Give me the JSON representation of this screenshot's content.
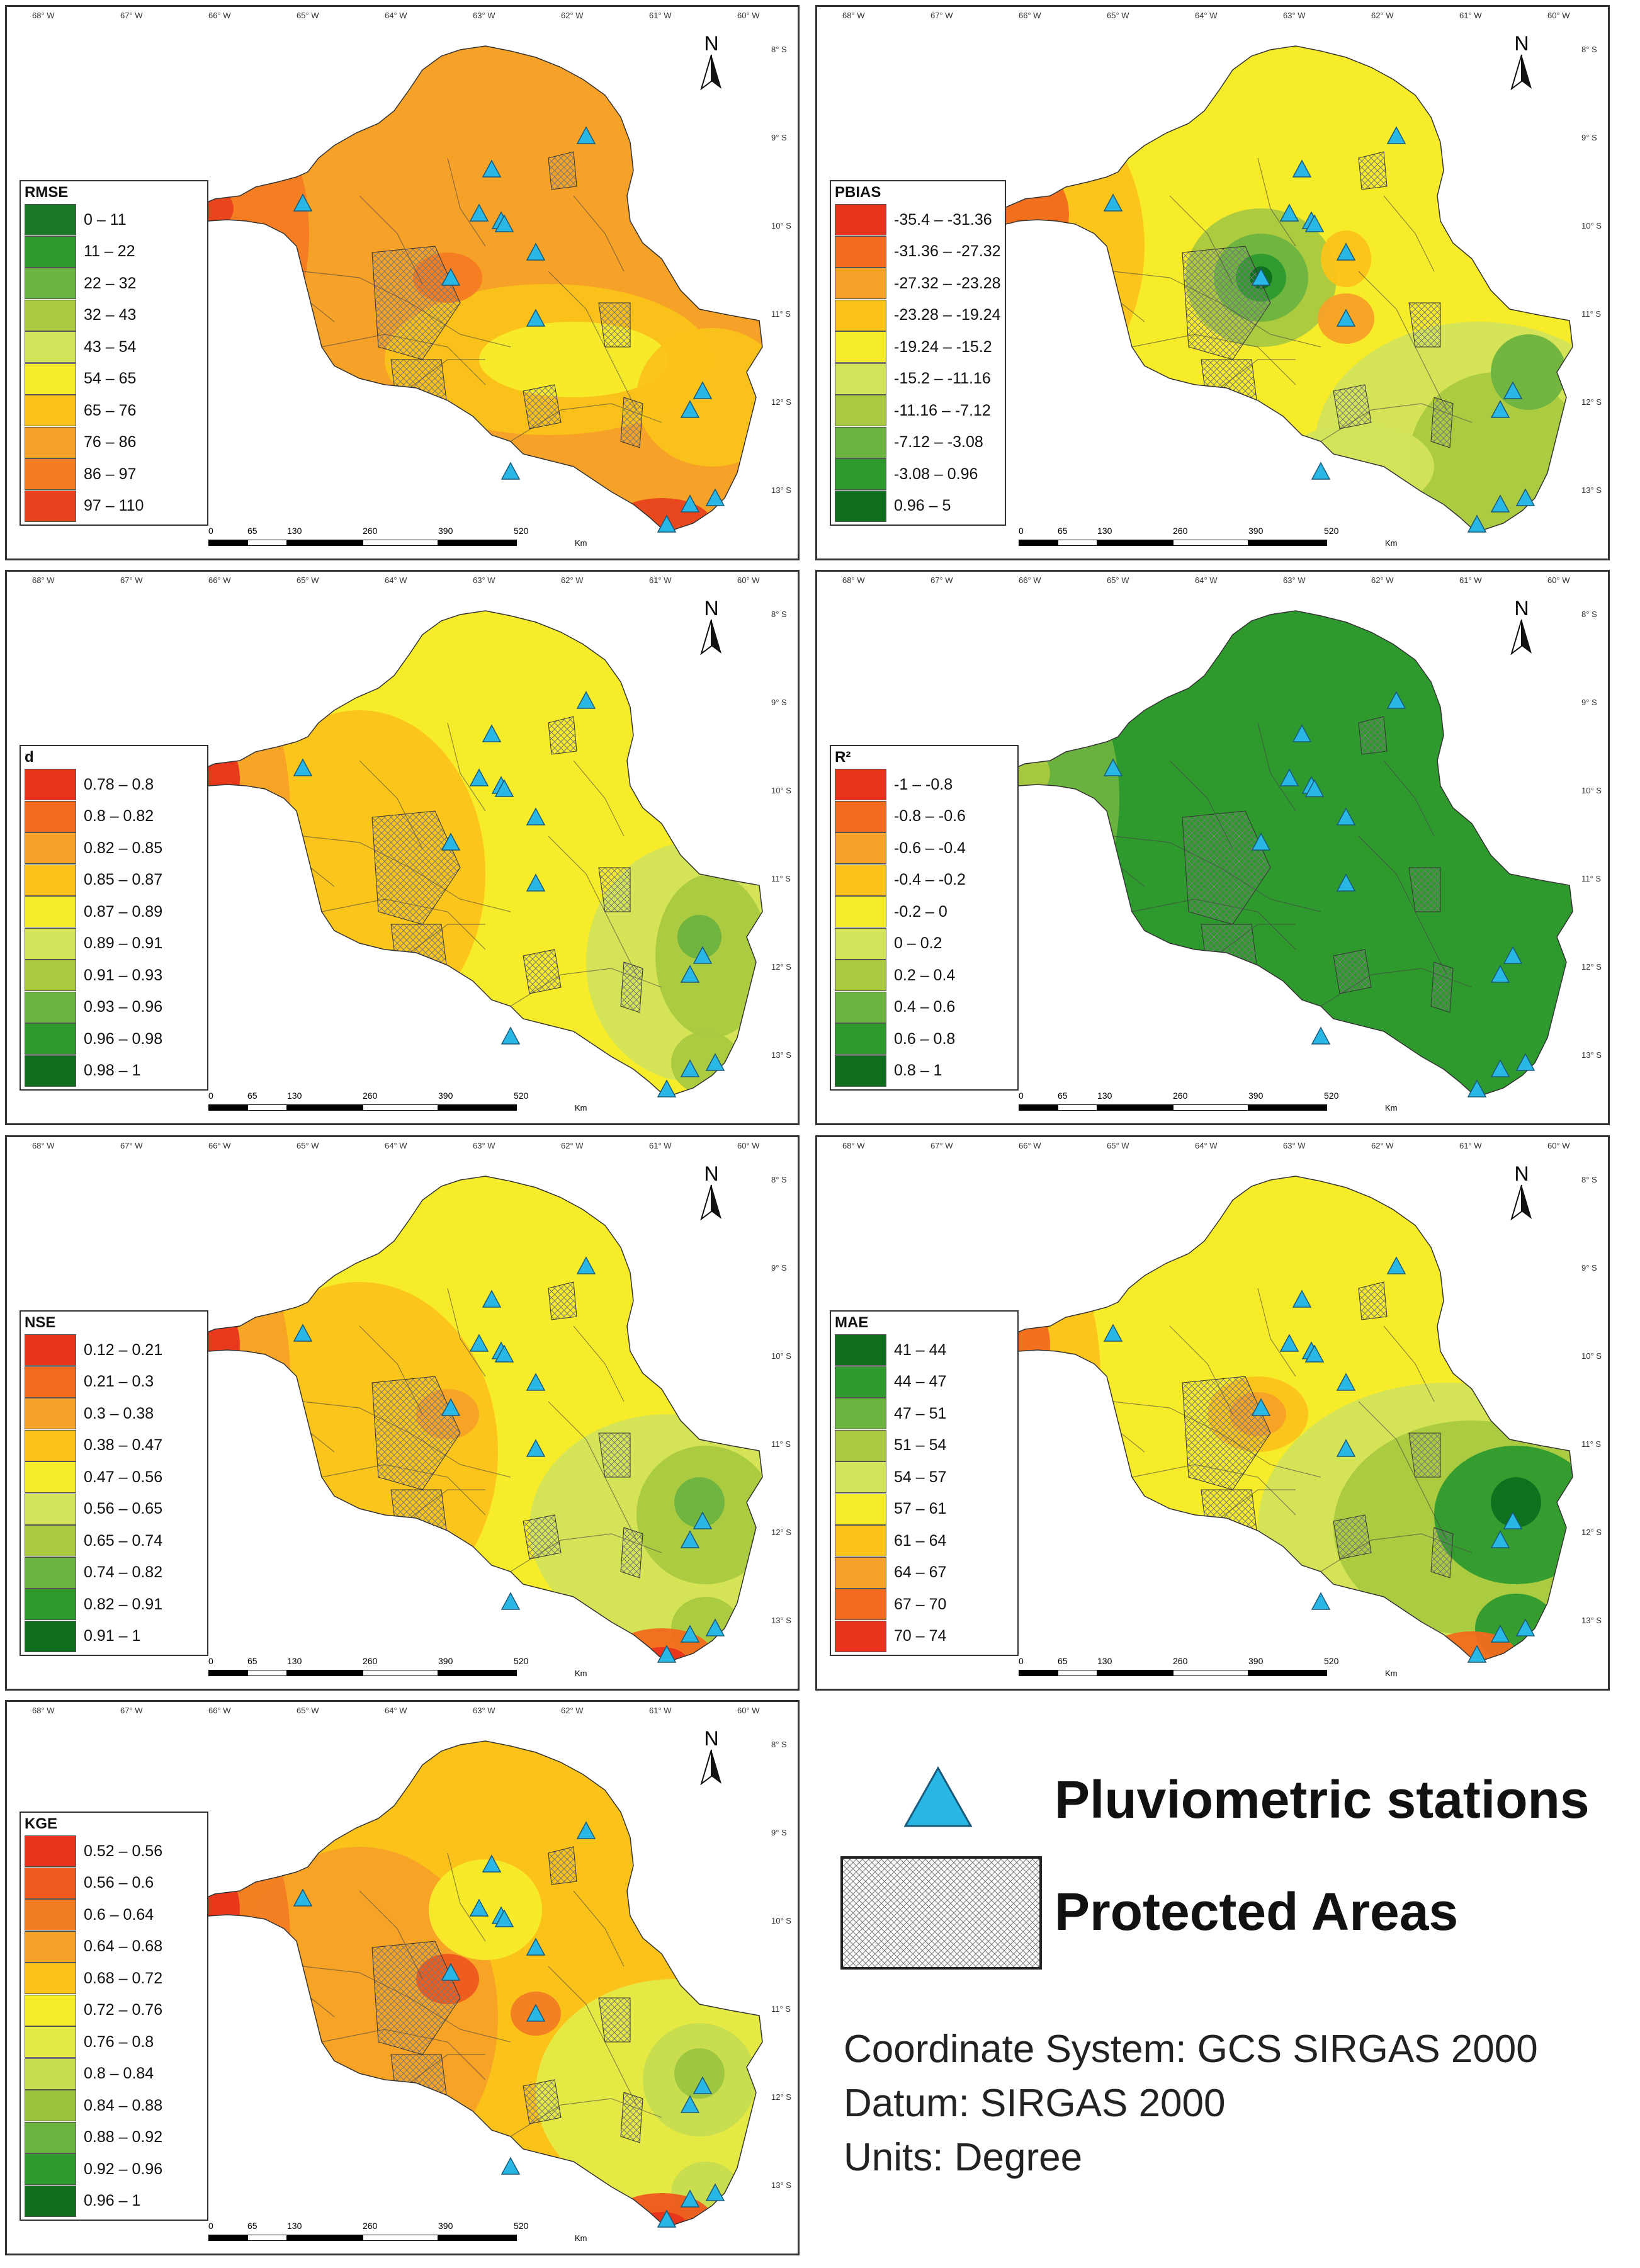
{
  "lon_ticks": [
    "68° W",
    "67° W",
    "66° W",
    "65° W",
    "64° W",
    "63° W",
    "62° W",
    "61° W",
    "60° W"
  ],
  "lat_ticks": [
    "8° S",
    "9° S",
    "10° S",
    "11° S",
    "12° S",
    "13° S"
  ],
  "north_label": "N",
  "scale": {
    "numbers": [
      "0",
      "65",
      "130",
      "260",
      "390",
      "520"
    ],
    "unit": "Km"
  },
  "panels": [
    {
      "id": "rmse",
      "title": "RMSE",
      "classes": [
        "0 – 11",
        "11 – 22",
        "22 – 32",
        "32 – 43",
        "43 – 54",
        "54 – 65",
        "65 – 76",
        "76 – 86",
        "86 – 97",
        "97 – 110"
      ],
      "colors": [
        "#1a7a2a",
        "#2e9a2e",
        "#6db33f",
        "#a9c940",
        "#d3e35a",
        "#f7ec2a",
        "#fbc31a",
        "#f6a127",
        "#f47c22",
        "#e8421e"
      ]
    },
    {
      "id": "pbias",
      "title": "PBIAS",
      "classes": [
        "-35.4 – -31.36",
        "-31.36 – -27.32",
        "-27.32 – -23.28",
        "-23.28 – -19.24",
        "-19.24 – -15.2",
        "-15.2 – -11.16",
        "-11.16 – -7.12",
        "-7.12 – -3.08",
        "-3.08 – 0.96",
        "0.96 – 5"
      ],
      "colors": [
        "#e8331c",
        "#f16a1d",
        "#f6a127",
        "#fbc31a",
        "#f7ec2a",
        "#d3e35a",
        "#a9c940",
        "#6db33f",
        "#2e9a2e",
        "#0e6e1e"
      ]
    },
    {
      "id": "d",
      "title": "d",
      "classes": [
        "0.78 – 0.8",
        "0.8 – 0.82",
        "0.82 – 0.85",
        "0.85 – 0.87",
        "0.87 – 0.89",
        "0.89 – 0.91",
        "0.91 – 0.93",
        "0.93 – 0.96",
        "0.96 – 0.98",
        "0.98 – 1"
      ],
      "colors": [
        "#e8331c",
        "#f16a1d",
        "#f6a127",
        "#fbc31a",
        "#f7ec2a",
        "#d3e35a",
        "#a9c940",
        "#6db33f",
        "#2e9a2e",
        "#0e6e1e"
      ]
    },
    {
      "id": "r2",
      "title": "R²",
      "classes": [
        "-1 – -0.8",
        "-0.8 – -0.6",
        "-0.6 – -0.4",
        "-0.4 – -0.2",
        "-0.2 – 0",
        "0 – 0.2",
        "0.2 – 0.4",
        "0.4 – 0.6",
        "0.6 – 0.8",
        "0.8 – 1"
      ],
      "colors": [
        "#e8331c",
        "#f16a1d",
        "#f6a127",
        "#fbc31a",
        "#f7ec2a",
        "#d3e35a",
        "#a9c940",
        "#6db33f",
        "#2e9a2e",
        "#0e6e1e"
      ]
    },
    {
      "id": "nse",
      "title": "NSE",
      "classes": [
        "0.12 – 0.21",
        "0.21 – 0.3",
        "0.3 – 0.38",
        "0.38 – 0.47",
        "0.47 – 0.56",
        "0.56 – 0.65",
        "0.65 – 0.74",
        "0.74 – 0.82",
        "0.82 – 0.91",
        "0.91 – 1"
      ],
      "colors": [
        "#e8331c",
        "#f16a1d",
        "#f6a127",
        "#fbc31a",
        "#f7ec2a",
        "#d3e35a",
        "#a9c940",
        "#6db33f",
        "#2e9a2e",
        "#0e6e1e"
      ]
    },
    {
      "id": "mae",
      "title": "MAE",
      "classes": [
        "41 – 44",
        "44 – 47",
        "47 – 51",
        "51 – 54",
        "54 – 57",
        "57 – 61",
        "61 – 64",
        "64 – 67",
        "67 – 70",
        "70 – 74"
      ],
      "colors": [
        "#0e6e1e",
        "#2e9a2e",
        "#6db33f",
        "#a9c940",
        "#d3e35a",
        "#f7ec2a",
        "#fbc31a",
        "#f6a127",
        "#f16a1d",
        "#e8331c"
      ]
    },
    {
      "id": "kge",
      "title": "KGE",
      "classes": [
        "0.52 – 0.56",
        "0.56 – 0.6",
        "0.6 – 0.64",
        "0.64 – 0.68",
        "0.68 – 0.72",
        "0.72 – 0.76",
        "0.76 – 0.8",
        "0.8 – 0.84",
        "0.84 – 0.88",
        "0.88 – 0.92",
        "0.92 – 0.96",
        "0.96 – 1"
      ],
      "colors": [
        "#e8331c",
        "#ee5a1d",
        "#f37d22",
        "#f6a127",
        "#fbc31a",
        "#f7ec2a",
        "#e4eb46",
        "#c6dd50",
        "#9cc43f",
        "#6db33f",
        "#2e9a2e",
        "#0e6e1e"
      ]
    }
  ],
  "key": {
    "stations_label": "Pluviometric stations",
    "protected_label": "Protected Areas",
    "station_color": "#29b7e6"
  },
  "info": {
    "line1": "Coordinate System: GCS SIRGAS 2000",
    "line2": "Datum: SIRGAS 2000",
    "line3": "Units: Degree"
  }
}
